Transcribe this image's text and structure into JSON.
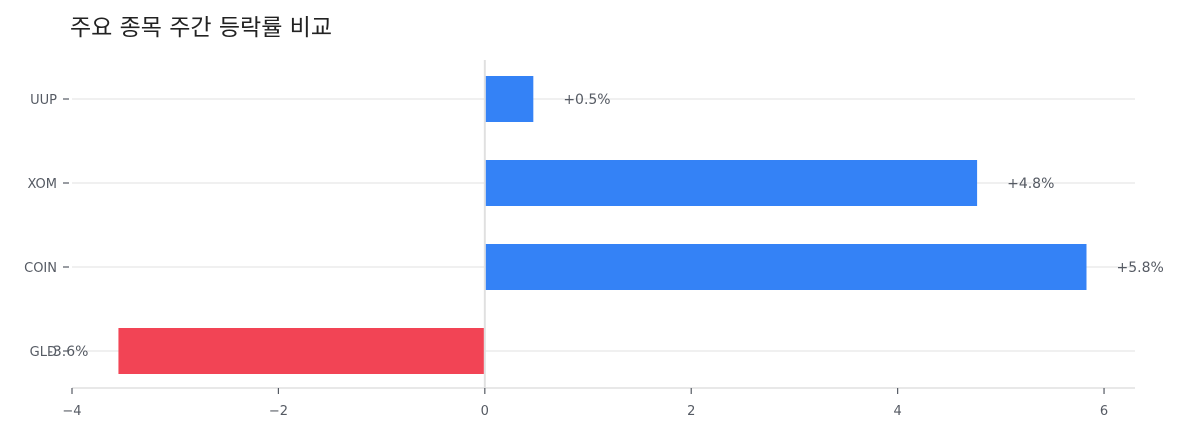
{
  "title": "주요 종목 주간 등락률 비교",
  "chart_data": {
    "type": "bar",
    "orientation": "horizontal",
    "title": "주요 종목 주간 등락률 비교",
    "categories": [
      "UUP",
      "XOM",
      "COIN",
      "GLD"
    ],
    "values": [
      0.47,
      4.77,
      5.83,
      -3.55
    ],
    "data_labels": [
      "+0.5%",
      "+4.8%",
      "+5.8%",
      "-3.6%"
    ],
    "xlim": [
      -4,
      6.3
    ],
    "xticks": [
      -4,
      -2,
      0,
      2,
      4,
      6
    ],
    "xtick_labels": [
      "−4",
      "−2",
      "0",
      "2",
      "4",
      "6"
    ],
    "xlabel": "",
    "ylabel": "",
    "grid": "horizontal",
    "colors": {
      "positive": "#3482f6",
      "negative": "#f24455",
      "grid": "#f0f0f0",
      "axis": "#e0e0e0",
      "text": "#555a63"
    }
  }
}
